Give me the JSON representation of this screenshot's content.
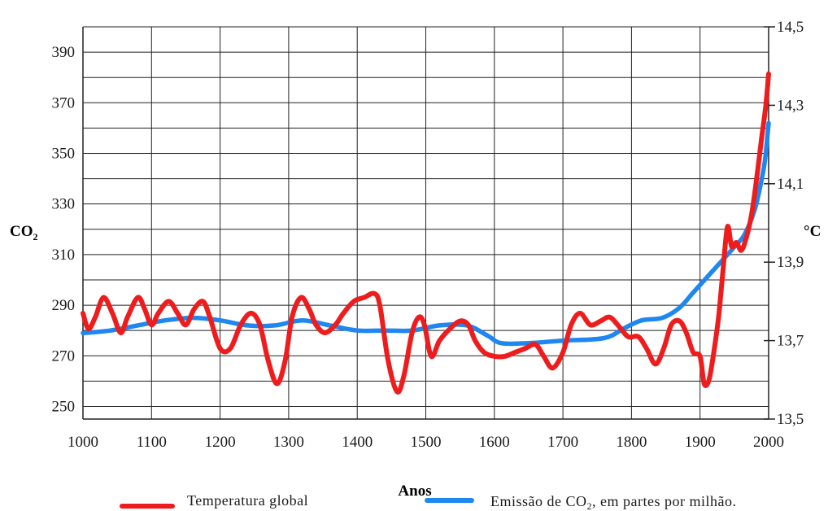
{
  "chart_data": {
    "type": "line",
    "xlabel": "Anos",
    "ylabel_left_main": "CO",
    "ylabel_left_sub": "2",
    "ylabel_right": "°C",
    "xlim": [
      1000,
      2000
    ],
    "ylim_left": [
      245,
      400
    ],
    "ylim_right": [
      13.5,
      14.5
    ],
    "x_ticks": [
      "1000",
      "1100",
      "1200",
      "1300",
      "1400",
      "1500",
      "1600",
      "1700",
      "1800",
      "1900",
      "2000"
    ],
    "y_left_ticks": [
      {
        "value": 250,
        "label": "250"
      },
      {
        "value": 270,
        "label": "270"
      },
      {
        "value": 290,
        "label": "290"
      },
      {
        "value": 310,
        "label": "310"
      },
      {
        "value": 330,
        "label": "330"
      },
      {
        "value": 350,
        "label": "350"
      },
      {
        "value": 370,
        "label": "370"
      },
      {
        "value": 390,
        "label": "390"
      }
    ],
    "y_right_ticks": [
      {
        "value": 13.5,
        "label": "13,5"
      },
      {
        "value": 13.7,
        "label": "13,7"
      },
      {
        "value": 13.9,
        "label": "13,9"
      },
      {
        "value": 14.1,
        "label": "14,1"
      },
      {
        "value": 14.3,
        "label": "14,3"
      },
      {
        "value": 14.5,
        "label": "14,5"
      }
    ],
    "grid": true,
    "legend_position": "bottom",
    "series": [
      {
        "name": "Temperatura global",
        "axis": "right",
        "color": "#ee1c1c",
        "points": [
          [
            1000,
            13.77
          ],
          [
            1008,
            13.73
          ],
          [
            1018,
            13.76
          ],
          [
            1030,
            13.81
          ],
          [
            1043,
            13.77
          ],
          [
            1055,
            13.72
          ],
          [
            1065,
            13.76
          ],
          [
            1080,
            13.81
          ],
          [
            1090,
            13.78
          ],
          [
            1100,
            13.74
          ],
          [
            1110,
            13.77
          ],
          [
            1125,
            13.8
          ],
          [
            1138,
            13.77
          ],
          [
            1150,
            13.74
          ],
          [
            1162,
            13.78
          ],
          [
            1175,
            13.8
          ],
          [
            1185,
            13.76
          ],
          [
            1200,
            13.68
          ],
          [
            1215,
            13.68
          ],
          [
            1230,
            13.74
          ],
          [
            1245,
            13.77
          ],
          [
            1258,
            13.74
          ],
          [
            1270,
            13.65
          ],
          [
            1283,
            13.59
          ],
          [
            1295,
            13.65
          ],
          [
            1305,
            13.76
          ],
          [
            1318,
            13.81
          ],
          [
            1330,
            13.78
          ],
          [
            1340,
            13.74
          ],
          [
            1353,
            13.72
          ],
          [
            1368,
            13.74
          ],
          [
            1380,
            13.77
          ],
          [
            1395,
            13.8
          ],
          [
            1410,
            13.81
          ],
          [
            1425,
            13.82
          ],
          [
            1433,
            13.79
          ],
          [
            1445,
            13.65
          ],
          [
            1458,
            13.57
          ],
          [
            1468,
            13.61
          ],
          [
            1480,
            13.72
          ],
          [
            1490,
            13.76
          ],
          [
            1498,
            13.74
          ],
          [
            1508,
            13.66
          ],
          [
            1520,
            13.7
          ],
          [
            1535,
            13.73
          ],
          [
            1550,
            13.75
          ],
          [
            1562,
            13.74
          ],
          [
            1572,
            13.7
          ],
          [
            1585,
            13.67
          ],
          [
            1600,
            13.66
          ],
          [
            1615,
            13.66
          ],
          [
            1630,
            13.67
          ],
          [
            1645,
            13.68
          ],
          [
            1660,
            13.69
          ],
          [
            1672,
            13.66
          ],
          [
            1685,
            13.63
          ],
          [
            1700,
            13.67
          ],
          [
            1712,
            13.74
          ],
          [
            1725,
            13.77
          ],
          [
            1740,
            13.74
          ],
          [
            1755,
            13.75
          ],
          [
            1768,
            13.76
          ],
          [
            1780,
            13.74
          ],
          [
            1795,
            13.71
          ],
          [
            1810,
            13.71
          ],
          [
            1822,
            13.68
          ],
          [
            1835,
            13.64
          ],
          [
            1847,
            13.68
          ],
          [
            1858,
            13.74
          ],
          [
            1870,
            13.75
          ],
          [
            1880,
            13.72
          ],
          [
            1890,
            13.67
          ],
          [
            1900,
            13.66
          ],
          [
            1906,
            13.59
          ],
          [
            1913,
            13.6
          ],
          [
            1920,
            13.67
          ],
          [
            1927,
            13.76
          ],
          [
            1933,
            13.87
          ],
          [
            1940,
            13.99
          ],
          [
            1946,
            13.94
          ],
          [
            1953,
            13.95
          ],
          [
            1960,
            13.93
          ],
          [
            1967,
            13.96
          ],
          [
            1975,
            14.02
          ],
          [
            1983,
            14.12
          ],
          [
            1990,
            14.22
          ],
          [
            1996,
            14.3
          ],
          [
            2000,
            14.38
          ]
        ]
      },
      {
        "name": "Emissão de CO",
        "name_sub": "2",
        "name_suffix": ", em partes por milhão.",
        "axis": "left",
        "color": "#1f87f0",
        "points": [
          [
            1000,
            279
          ],
          [
            1040,
            280
          ],
          [
            1080,
            282
          ],
          [
            1120,
            284
          ],
          [
            1160,
            285
          ],
          [
            1200,
            284
          ],
          [
            1240,
            282
          ],
          [
            1280,
            282
          ],
          [
            1320,
            284
          ],
          [
            1360,
            282
          ],
          [
            1400,
            280
          ],
          [
            1440,
            280
          ],
          [
            1480,
            280
          ],
          [
            1520,
            282
          ],
          [
            1560,
            282
          ],
          [
            1590,
            278
          ],
          [
            1610,
            275
          ],
          [
            1650,
            275
          ],
          [
            1700,
            276
          ],
          [
            1760,
            277
          ],
          [
            1790,
            281
          ],
          [
            1815,
            284
          ],
          [
            1845,
            285
          ],
          [
            1870,
            289
          ],
          [
            1890,
            295
          ],
          [
            1910,
            301
          ],
          [
            1930,
            307
          ],
          [
            1950,
            313
          ],
          [
            1965,
            318
          ],
          [
            1980,
            328
          ],
          [
            1990,
            340
          ],
          [
            1995,
            348
          ],
          [
            2000,
            362
          ]
        ]
      }
    ]
  }
}
